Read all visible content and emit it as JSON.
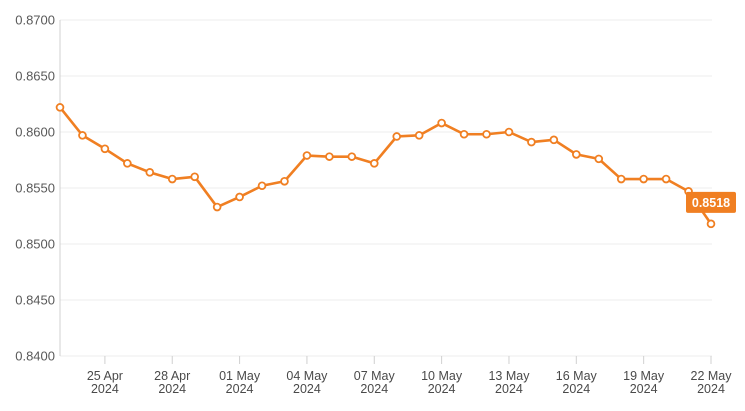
{
  "chart_data": {
    "type": "line",
    "title": "",
    "xlabel": "",
    "ylabel": "",
    "ylim": [
      0.84,
      0.87
    ],
    "yticks": [
      "0.8700",
      "0.8650",
      "0.8600",
      "0.8550",
      "0.8500",
      "0.8450",
      "0.8400"
    ],
    "xticks": [
      {
        "date": "2024-04-25",
        "line1": "25 Apr",
        "line2": "2024"
      },
      {
        "date": "2024-04-28",
        "line1": "28 Apr",
        "line2": "2024"
      },
      {
        "date": "2024-05-01",
        "line1": "01 May",
        "line2": "2024"
      },
      {
        "date": "2024-05-04",
        "line1": "04 May",
        "line2": "2024"
      },
      {
        "date": "2024-05-07",
        "line1": "07 May",
        "line2": "2024"
      },
      {
        "date": "2024-05-10",
        "line1": "10 May",
        "line2": "2024"
      },
      {
        "date": "2024-05-13",
        "line1": "13 May",
        "line2": "2024"
      },
      {
        "date": "2024-05-16",
        "line1": "16 May",
        "line2": "2024"
      },
      {
        "date": "2024-05-19",
        "line1": "19 May",
        "line2": "2024"
      },
      {
        "date": "2024-05-22",
        "line1": "22 May",
        "line2": "2024"
      }
    ],
    "x": [
      "2024-04-23",
      "2024-04-24",
      "2024-04-25",
      "2024-04-26",
      "2024-04-27",
      "2024-04-28",
      "2024-04-29",
      "2024-04-30",
      "2024-05-01",
      "2024-05-02",
      "2024-05-03",
      "2024-05-04",
      "2024-05-05",
      "2024-05-06",
      "2024-05-07",
      "2024-05-08",
      "2024-05-09",
      "2024-05-10",
      "2024-05-11",
      "2024-05-12",
      "2024-05-13",
      "2024-05-14",
      "2024-05-15",
      "2024-05-16",
      "2024-05-17",
      "2024-05-18",
      "2024-05-19",
      "2024-05-20",
      "2024-05-21",
      "2024-05-22"
    ],
    "series": [
      {
        "values": [
          0.8622,
          0.8597,
          0.8585,
          0.8572,
          0.8564,
          0.8558,
          0.856,
          0.8533,
          0.8542,
          0.8552,
          0.8556,
          0.8579,
          0.8578,
          0.8578,
          0.8572,
          0.8596,
          0.8597,
          0.8608,
          0.8598,
          0.8598,
          0.86,
          0.8591,
          0.8593,
          0.858,
          0.8576,
          0.8558,
          0.8558,
          0.8558,
          0.8547,
          0.8518
        ],
        "color": "#f07f22"
      }
    ],
    "last_value_label": "0.8518",
    "grid": true,
    "colors": {
      "line": "#f07f22",
      "marker_fill": "#ffffff",
      "badge_bg": "#f07f22",
      "badge_text": "#ffffff",
      "grid": "#ececec",
      "axis": "#d0d0d0"
    }
  }
}
